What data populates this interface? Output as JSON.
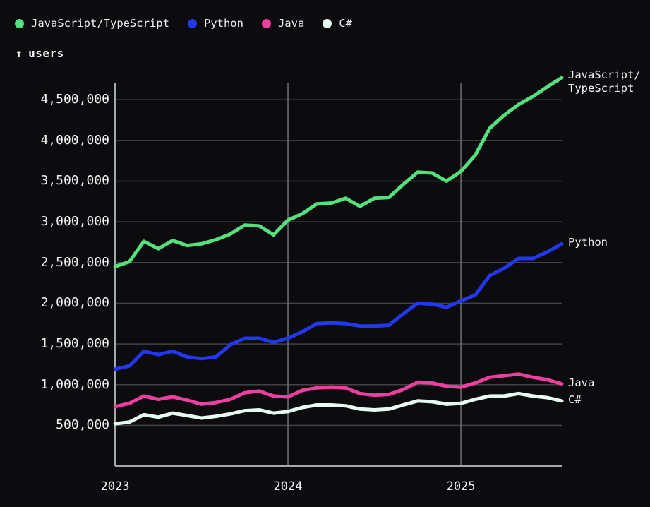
{
  "colors": {
    "background": "#0c0c0e",
    "text": "#f4f4f4",
    "grid_line": "#434346",
    "year_line": "#6f7073",
    "axis_line": "#a6a9ab"
  },
  "legend": {
    "items": [
      {
        "label": "JavaScript/TypeScript",
        "color": "#55e07e"
      },
      {
        "label": "Python",
        "color": "#2138f0"
      },
      {
        "label": "Java",
        "color": "#ec3f9f"
      },
      {
        "label": "C#",
        "color": "#e6faf1"
      }
    ]
  },
  "axis_title": {
    "arrow": "↑",
    "label": "users"
  },
  "chart_data": {
    "type": "line",
    "title": "",
    "xlabel": "",
    "ylabel": "users",
    "grid": true,
    "legend_position": "top-left",
    "ylim": [
      0,
      4710000
    ],
    "y_ticks": [
      500000,
      1000000,
      1500000,
      2000000,
      2500000,
      3000000,
      3500000,
      4000000,
      4500000
    ],
    "x_tick_labels": [
      "2023",
      "2024",
      "2025"
    ],
    "x_tick_positions": [
      0,
      12,
      24
    ],
    "months": [
      "2023-01",
      "2023-02",
      "2023-03",
      "2023-04",
      "2023-05",
      "2023-06",
      "2023-07",
      "2023-08",
      "2023-09",
      "2023-10",
      "2023-11",
      "2023-12",
      "2024-01",
      "2024-02",
      "2024-03",
      "2024-04",
      "2024-05",
      "2024-06",
      "2024-07",
      "2024-08",
      "2024-09",
      "2024-10",
      "2024-11",
      "2024-12",
      "2025-01",
      "2025-02",
      "2025-03",
      "2025-04",
      "2025-05",
      "2025-06",
      "2025-07",
      "2025-08"
    ],
    "series": [
      {
        "name": "JavaScript/TypeScript",
        "end_label": "JavaScript/\nTypeScript",
        "color": "#55e07e",
        "values": [
          2450000,
          2510000,
          2760000,
          2670000,
          2770000,
          2710000,
          2730000,
          2780000,
          2850000,
          2960000,
          2950000,
          2840000,
          3020000,
          3100000,
          3220000,
          3230000,
          3290000,
          3190000,
          3290000,
          3300000,
          3460000,
          3610000,
          3600000,
          3500000,
          3620000,
          3820000,
          4150000,
          4310000,
          4440000,
          4540000,
          4660000,
          4770000
        ]
      },
      {
        "name": "Python",
        "end_label": "Python",
        "color": "#2138f0",
        "values": [
          1190000,
          1230000,
          1410000,
          1370000,
          1410000,
          1340000,
          1320000,
          1340000,
          1490000,
          1570000,
          1570000,
          1520000,
          1570000,
          1650000,
          1750000,
          1760000,
          1750000,
          1720000,
          1720000,
          1730000,
          1870000,
          2000000,
          1990000,
          1950000,
          2030000,
          2100000,
          2340000,
          2430000,
          2550000,
          2550000,
          2630000,
          2730000
        ]
      },
      {
        "name": "Java",
        "end_label": "Java",
        "color": "#ec3f9f",
        "values": [
          730000,
          770000,
          860000,
          820000,
          850000,
          810000,
          760000,
          780000,
          820000,
          900000,
          920000,
          860000,
          850000,
          930000,
          960000,
          970000,
          960000,
          890000,
          870000,
          880000,
          940000,
          1030000,
          1020000,
          980000,
          970000,
          1020000,
          1090000,
          1110000,
          1130000,
          1090000,
          1060000,
          1010000
        ]
      },
      {
        "name": "C#",
        "end_label": "C#",
        "color": "#e6faf1",
        "values": [
          520000,
          540000,
          630000,
          600000,
          650000,
          620000,
          590000,
          610000,
          640000,
          680000,
          690000,
          650000,
          670000,
          720000,
          750000,
          750000,
          740000,
          700000,
          690000,
          700000,
          750000,
          800000,
          790000,
          760000,
          770000,
          820000,
          860000,
          860000,
          890000,
          860000,
          840000,
          800000
        ]
      }
    ]
  }
}
